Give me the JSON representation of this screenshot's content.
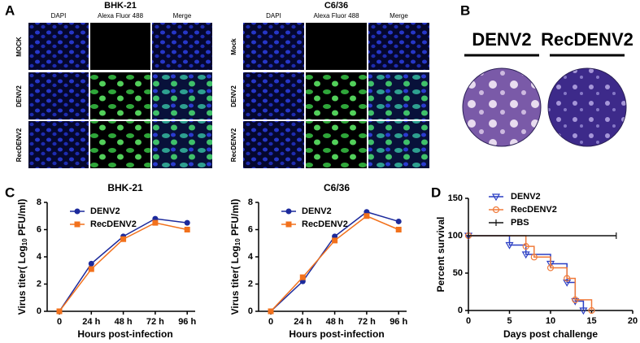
{
  "panel_letters": [
    "A",
    "B",
    "C",
    "D"
  ],
  "panel_a": {
    "groups": [
      {
        "title": "BHK-21",
        "columns": [
          "DAPI",
          "Alexa Fluor 488",
          "Merge"
        ],
        "rows": [
          "MOCK",
          "DENV2",
          "RecDENV2"
        ]
      },
      {
        "title": "C6/36",
        "columns": [
          "DAPI",
          "Alexa Fluor 488",
          "Merge"
        ],
        "rows": [
          "Mock",
          "DENV2",
          "RecDENV2"
        ]
      }
    ]
  },
  "panel_b": {
    "labels": [
      "DENV2",
      "RecDENV2"
    ]
  },
  "chart_data": [
    {
      "type": "line",
      "title": "BHK-21",
      "xlabel": "Hours post-infection",
      "ylabel": [
        "Virus titer( Log",
        "10",
        " PFU/ml)"
      ],
      "categories": [
        "0",
        "24 h",
        "48 h",
        "72 h",
        "96 h"
      ],
      "ylim": [
        0,
        8
      ],
      "yticks": [
        0,
        2,
        4,
        6,
        8
      ],
      "series": [
        {
          "name": "DENV2",
          "color": "#1c2a9c",
          "marker": "circle",
          "values": [
            0,
            3.5,
            5.5,
            6.8,
            6.5
          ]
        },
        {
          "name": "RecDENV2",
          "color": "#f2711c",
          "marker": "square",
          "values": [
            0,
            3.1,
            5.3,
            6.5,
            6.0
          ]
        }
      ]
    },
    {
      "type": "line",
      "title": "C6/36",
      "xlabel": "Hours post-infection",
      "ylabel": [
        "Virus titer( Log",
        "10",
        " PFU/ml)"
      ],
      "categories": [
        "0",
        "24 h",
        "48 h",
        "72 h",
        "96 h"
      ],
      "ylim": [
        0,
        8
      ],
      "yticks": [
        0,
        2,
        4,
        6,
        8
      ],
      "series": [
        {
          "name": "DENV2",
          "color": "#1c2a9c",
          "marker": "circle",
          "values": [
            0,
            2.2,
            5.5,
            7.3,
            6.6
          ]
        },
        {
          "name": "RecDENV2",
          "color": "#f2711c",
          "marker": "square",
          "values": [
            0,
            2.5,
            5.2,
            7.0,
            6.0
          ]
        }
      ]
    },
    {
      "type": "step",
      "xlabel": "Days post challenge",
      "ylabel": "Percent survival",
      "xlim": [
        0,
        20
      ],
      "xticks": [
        0,
        5,
        10,
        15,
        20
      ],
      "ylim": [
        0,
        150
      ],
      "yticks": [
        0,
        50,
        100,
        150
      ],
      "series": [
        {
          "name": "DENV2",
          "color": "#2b3fc4",
          "marker": "triangle",
          "x": [
            0,
            5,
            7,
            10,
            12,
            13,
            14
          ],
          "values": [
            100,
            87.5,
            75,
            62.5,
            37.5,
            12.5,
            0
          ]
        },
        {
          "name": "RecDENV2",
          "color": "#f07a3a",
          "marker": "ring",
          "x": [
            0,
            7,
            8,
            10,
            12,
            13,
            15
          ],
          "values": [
            100,
            85.7,
            71.4,
            57.1,
            42.9,
            14.3,
            0
          ]
        },
        {
          "name": "PBS",
          "color": "#111111",
          "marker": "tick",
          "x": [
            0,
            18
          ],
          "values": [
            100,
            100
          ]
        }
      ]
    }
  ]
}
